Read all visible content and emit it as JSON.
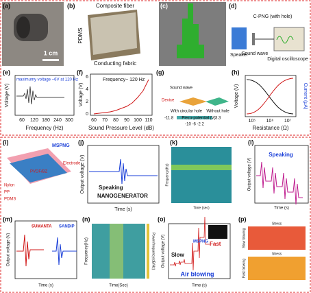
{
  "panels": {
    "a": {
      "label": "(a)",
      "scale": "1 cm"
    },
    "b": {
      "label": "(b)",
      "composite": "Composite fiber",
      "pdms": "PDMS",
      "fabric": "Conducting fabric"
    },
    "c": {
      "label": "(c)"
    },
    "d": {
      "label": "(d)",
      "device": "C-PNG (with hole)",
      "speaker": "Speaker",
      "wave": "Sound wave",
      "scope": "Digital oscilloscope"
    },
    "e": {
      "label": "(e)",
      "note": "maximumy voltage ~6V at 120 Hz",
      "ylabel": "Voltage (V)",
      "xlabel": "Frequency (Hz)",
      "xticks": [
        "60",
        "120",
        "180",
        "240",
        "300"
      ]
    },
    "f": {
      "label": "(f)",
      "note": "Frequency~ 120 Hz",
      "ylabel": "Voltage (V)",
      "xlabel": "Sound Pressure Level (dB)",
      "yticks": [
        "0",
        "2",
        "4",
        "6"
      ],
      "xticks": [
        "60",
        "70",
        "80",
        "90",
        "100",
        "110"
      ]
    },
    "g": {
      "label": "(g)",
      "wave": "Sound wave",
      "device": "Device",
      "with": "With circular hole",
      "without": "Without hole",
      "potential": "Piezo-potential (V)",
      "min": "-11.8",
      "max": "3.3",
      "scale": "-10  -6  -2  2"
    },
    "h": {
      "label": "(h)",
      "ylabel": "Voltage (V)",
      "y2label": "Current (μA)",
      "xlabel": "Resistance (Ω)",
      "xticks": [
        "10⁵",
        "10⁶",
        "10⁷"
      ]
    },
    "i": {
      "label": "(i)",
      "mspng": "MSPNG",
      "electrode": "Electrode",
      "nylon": "Nylon",
      "pp": "PP",
      "pdms": "PDMS",
      "pvdf": "PVDF/BZ"
    },
    "j": {
      "label": "(j)",
      "ylabel": "Output voltage (V)",
      "speaking": "Speaking",
      "nano": "NANOGENERATOR",
      "xlabel": "Time (s)"
    },
    "k": {
      "label": "(k)",
      "ylabel": "Frequency(Hz)",
      "xlabel": "Time (sec)"
    },
    "l": {
      "label": "(l)",
      "speaking": "Speaking",
      "ylabel": "Output voltage (V)",
      "xlabel": "Time (s)"
    },
    "m": {
      "label": "(m)",
      "name1": "SUMANTA",
      "name2": "SANDIP",
      "ylabel": "Output voltage (V)",
      "xlabel": "Time (s)"
    },
    "n": {
      "label": "(n)",
      "ylabel": "Frequency(Hz)",
      "xlabel": "Time(Sec)",
      "clabel": "Power/frequency(dB/Hz)"
    },
    "o": {
      "label": "(o)",
      "mspng": "MSPNG",
      "slow": "Slow",
      "fast": "Fast",
      "blow": "Air blowing",
      "ylabel": "Output voltage (V)",
      "xlabel": "Time (s)"
    },
    "p": {
      "label": "(p)",
      "stress": "Stress",
      "slow": "Slow blowing",
      "fast": "Fast blowing"
    }
  }
}
